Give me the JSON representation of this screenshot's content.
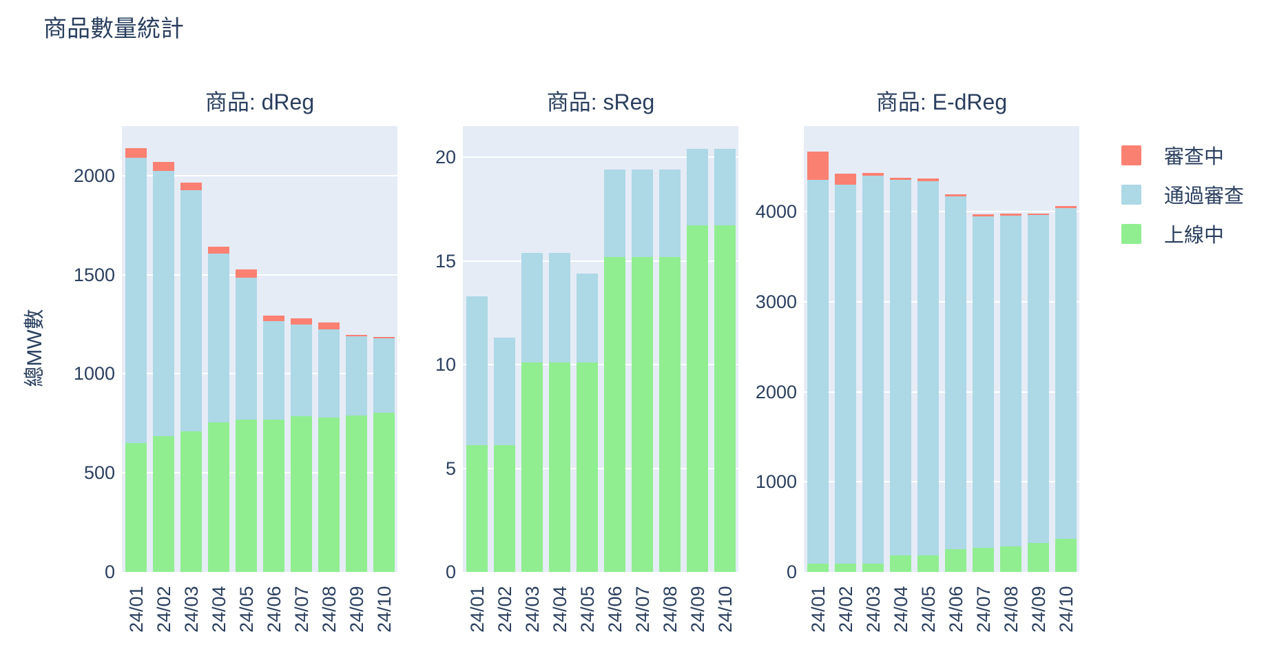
{
  "title": "商品數量統計",
  "y_axis_label": "總MW數",
  "colors": {
    "text": "#2a3f5f",
    "plot_background": "#e5ecf6",
    "gridline": "#ffffff",
    "pending_review": "#fa8072",
    "approved": "#add8e6",
    "online": "#90ee90"
  },
  "legend": {
    "items": [
      {
        "label": "審查中",
        "color": "#fa8072"
      },
      {
        "label": "通過審查",
        "color": "#add8e6"
      },
      {
        "label": "上線中",
        "color": "#90ee90"
      }
    ]
  },
  "chart_data": [
    {
      "type": "bar",
      "stacked": true,
      "title": "商品: dReg",
      "categories": [
        "24/01",
        "24/02",
        "24/03",
        "24/04",
        "24/05",
        "24/06",
        "24/07",
        "24/08",
        "24/09",
        "24/10"
      ],
      "y_ticks": [
        0,
        500,
        1000,
        1500,
        2000
      ],
      "y_range": [
        0,
        2250
      ],
      "grid": true,
      "series": [
        {
          "name": "上線中",
          "color": "#90ee90",
          "values": [
            650,
            685,
            710,
            755,
            770,
            770,
            785,
            780,
            790,
            805
          ]
        },
        {
          "name": "通過審查",
          "color": "#add8e6",
          "values": [
            1440,
            1340,
            1215,
            850,
            715,
            495,
            465,
            445,
            400,
            375
          ]
        },
        {
          "name": "審查中",
          "color": "#fa8072",
          "values": [
            50,
            45,
            40,
            35,
            40,
            30,
            30,
            35,
            5,
            5
          ]
        }
      ]
    },
    {
      "type": "bar",
      "stacked": true,
      "title": "商品: sReg",
      "categories": [
        "24/01",
        "24/02",
        "24/03",
        "24/04",
        "24/05",
        "24/06",
        "24/07",
        "24/08",
        "24/09",
        "24/10"
      ],
      "y_ticks": [
        0,
        5,
        10,
        15,
        20
      ],
      "y_range": [
        0,
        21.5
      ],
      "grid": true,
      "series": [
        {
          "name": "上線中",
          "color": "#90ee90",
          "values": [
            6.1,
            6.1,
            10.1,
            10.1,
            10.1,
            15.2,
            15.2,
            15.2,
            16.7,
            16.7
          ]
        },
        {
          "name": "通過審查",
          "color": "#add8e6",
          "values": [
            7.2,
            5.2,
            5.3,
            5.3,
            4.3,
            4.2,
            4.2,
            4.2,
            3.7,
            3.7
          ]
        },
        {
          "name": "審查中",
          "color": "#fa8072",
          "values": [
            0,
            0,
            0,
            0,
            0,
            0,
            0,
            0,
            0,
            0
          ]
        }
      ]
    },
    {
      "type": "bar",
      "stacked": true,
      "title": "商品: E-dReg",
      "categories": [
        "24/01",
        "24/02",
        "24/03",
        "24/04",
        "24/05",
        "24/06",
        "24/07",
        "24/08",
        "24/09",
        "24/10"
      ],
      "y_ticks": [
        0,
        1000,
        2000,
        3000,
        4000
      ],
      "y_range": [
        0,
        4950
      ],
      "grid": true,
      "series": [
        {
          "name": "上線中",
          "color": "#90ee90",
          "values": [
            90,
            90,
            95,
            180,
            185,
            250,
            270,
            285,
            320,
            365
          ]
        },
        {
          "name": "通過審查",
          "color": "#add8e6",
          "values": [
            4260,
            4210,
            4305,
            4170,
            4155,
            3920,
            3680,
            3670,
            3640,
            3675
          ]
        },
        {
          "name": "審查中",
          "color": "#fa8072",
          "values": [
            320,
            120,
            30,
            25,
            25,
            25,
            20,
            20,
            20,
            20
          ]
        }
      ]
    }
  ]
}
